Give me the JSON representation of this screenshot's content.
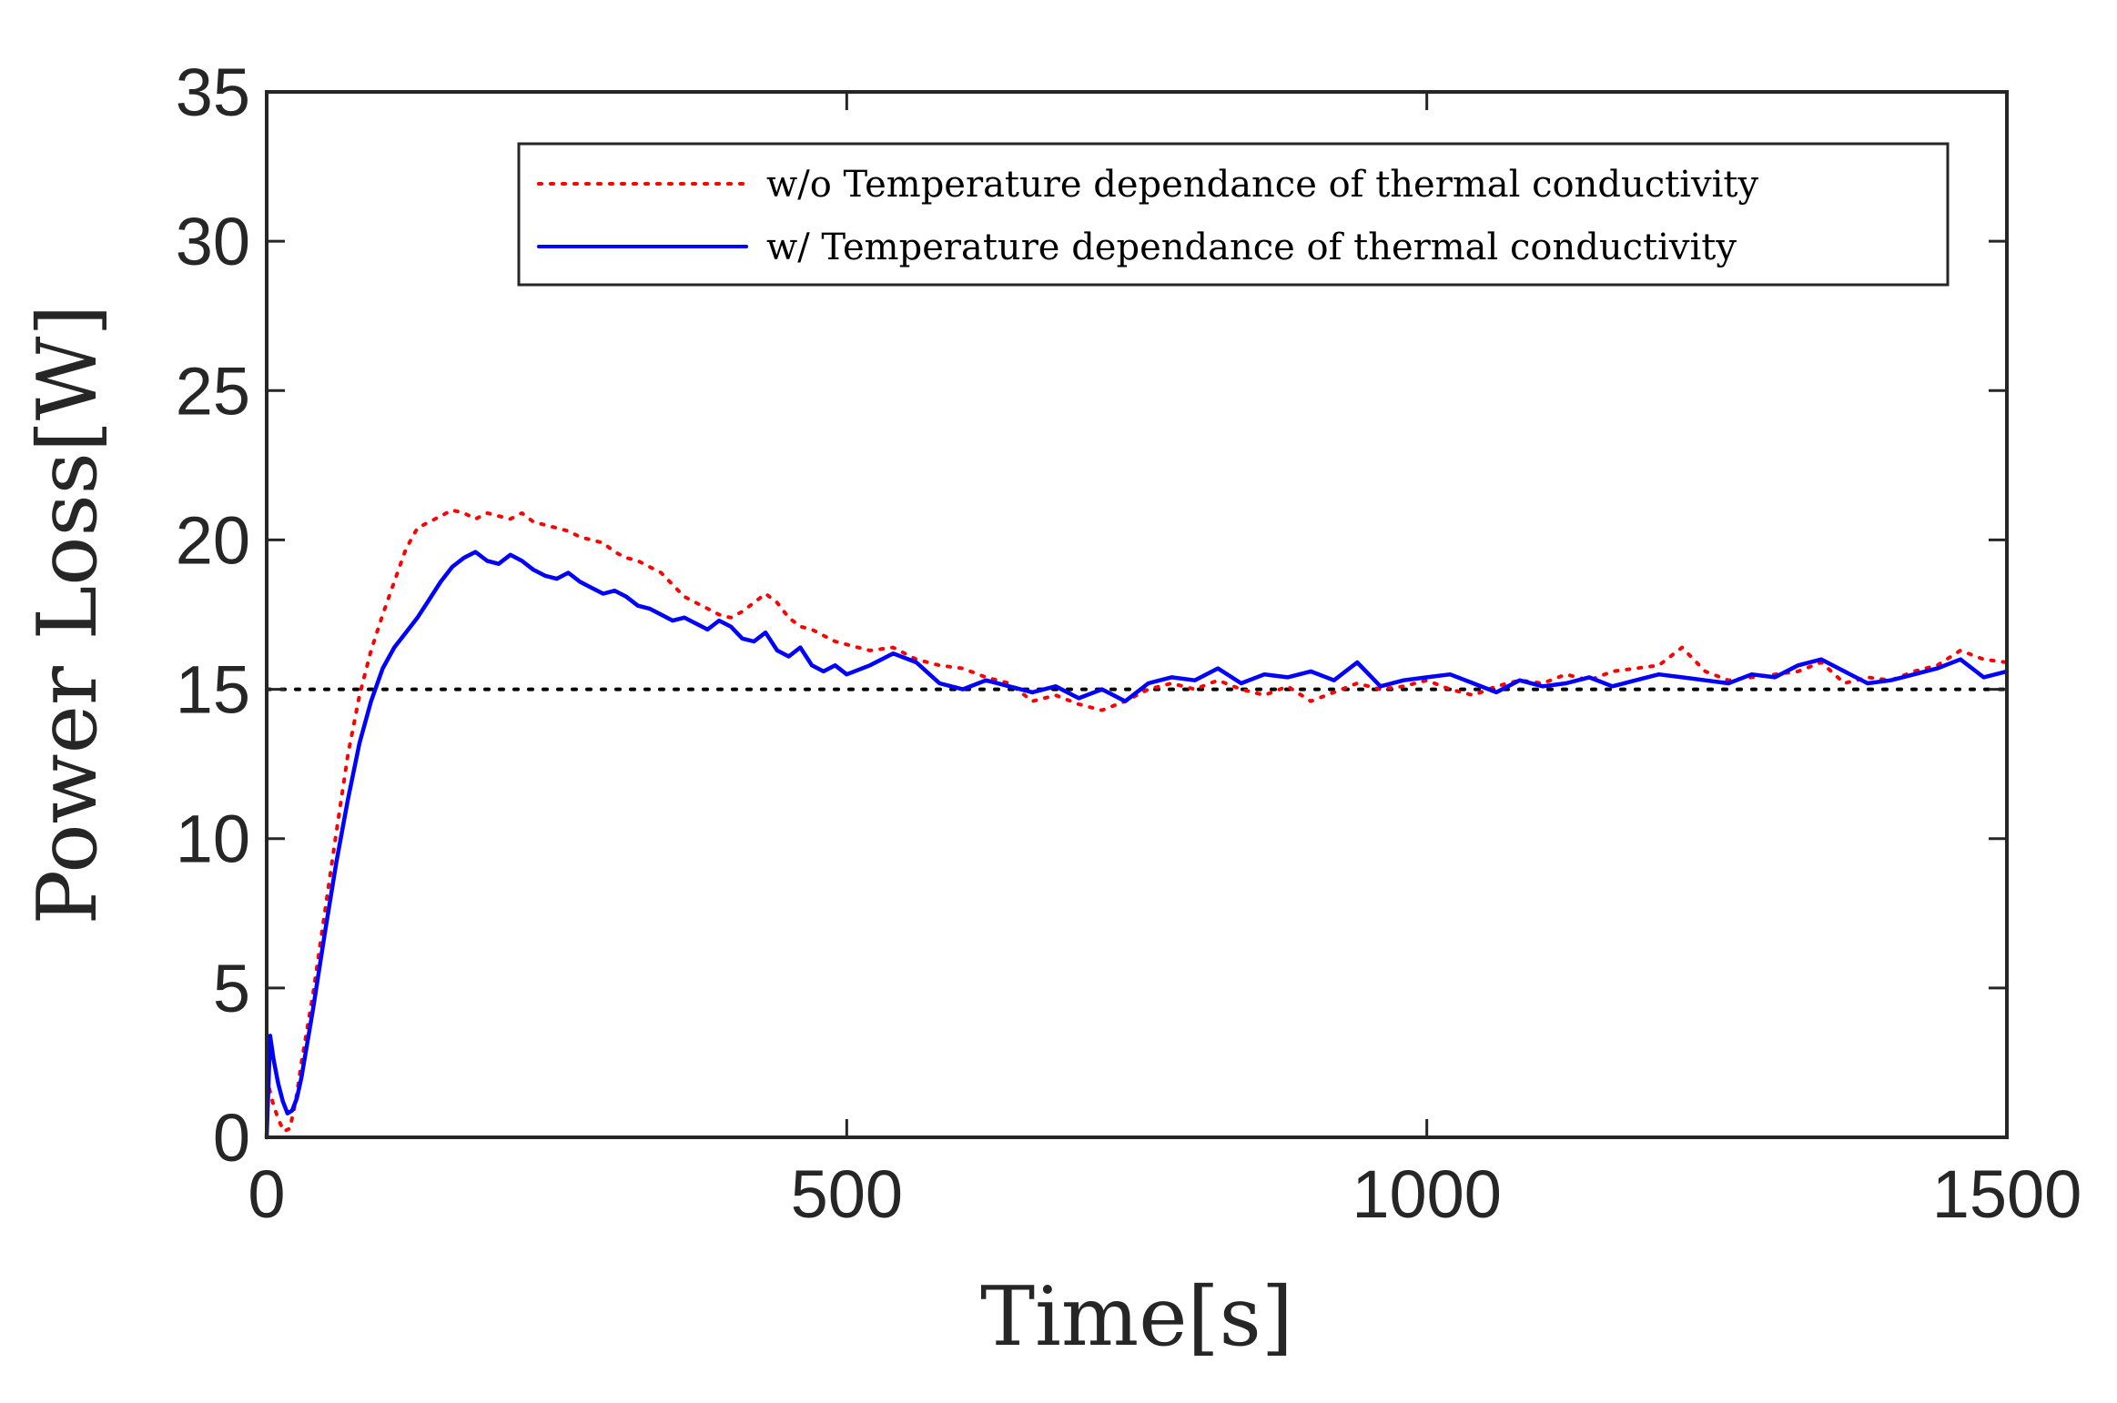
{
  "chart_data": {
    "type": "line",
    "title": "",
    "xlabel": "Time[s]",
    "ylabel": "Power Loss[W]",
    "xlim": [
      0,
      1500
    ],
    "ylim": [
      0,
      35
    ],
    "xticks": [
      0,
      500,
      1000,
      1500
    ],
    "yticks": [
      0,
      5,
      10,
      15,
      20,
      25,
      30,
      35
    ],
    "xtick_labels": [
      "0",
      "500",
      "1000",
      "1500"
    ],
    "ytick_labels": [
      "0",
      "5",
      "10",
      "15",
      "20",
      "25",
      "30",
      "35"
    ],
    "grid": false,
    "legend_position": "top-right",
    "reference_line": {
      "y": 15,
      "style": "dotted",
      "color": "#000000"
    },
    "series": [
      {
        "name": "w/o Temperature dependance of thermal conductivity",
        "color": "#ff0000",
        "style": "dotted",
        "x": [
          0,
          5,
          10,
          15,
          20,
          25,
          30,
          40,
          50,
          60,
          70,
          80,
          90,
          100,
          110,
          120,
          130,
          140,
          150,
          160,
          170,
          180,
          190,
          200,
          210,
          220,
          230,
          240,
          250,
          260,
          270,
          280,
          290,
          300,
          310,
          320,
          330,
          340,
          350,
          360,
          370,
          380,
          390,
          400,
          410,
          420,
          430,
          440,
          450,
          460,
          470,
          480,
          490,
          500,
          520,
          540,
          560,
          580,
          600,
          620,
          640,
          660,
          680,
          700,
          720,
          740,
          760,
          780,
          800,
          820,
          840,
          860,
          880,
          900,
          920,
          940,
          960,
          980,
          1000,
          1020,
          1040,
          1060,
          1080,
          1100,
          1120,
          1140,
          1160,
          1180,
          1200,
          1220,
          1240,
          1260,
          1280,
          1300,
          1320,
          1340,
          1360,
          1380,
          1400,
          1420,
          1440,
          1460,
          1480,
          1500
        ],
        "values": [
          2.0,
          1.2,
          0.6,
          0.2,
          0.3,
          1.2,
          2.5,
          4.8,
          7.5,
          10.2,
          12.8,
          14.8,
          16.3,
          17.5,
          18.6,
          19.7,
          20.4,
          20.6,
          20.8,
          21.0,
          20.9,
          20.7,
          20.9,
          20.8,
          20.7,
          20.9,
          20.6,
          20.5,
          20.4,
          20.3,
          20.1,
          20.0,
          19.9,
          19.6,
          19.4,
          19.3,
          19.1,
          18.9,
          18.5,
          18.1,
          17.9,
          17.7,
          17.5,
          17.4,
          17.6,
          17.9,
          18.2,
          17.9,
          17.4,
          17.1,
          17.0,
          16.8,
          16.6,
          16.5,
          16.3,
          16.4,
          16.0,
          15.8,
          15.7,
          15.4,
          15.2,
          14.6,
          14.8,
          14.5,
          14.3,
          14.6,
          15.0,
          15.2,
          15.0,
          15.3,
          15.0,
          14.8,
          15.1,
          14.6,
          14.9,
          15.2,
          15.0,
          15.1,
          15.3,
          15.0,
          14.8,
          15.1,
          15.3,
          15.2,
          15.5,
          15.3,
          15.6,
          15.7,
          15.8,
          16.4,
          15.6,
          15.3,
          15.4,
          15.5,
          15.6,
          15.9,
          15.2,
          15.4,
          15.3,
          15.6,
          15.8,
          16.3,
          16.0,
          15.9
        ]
      },
      {
        "name": "w/ Temperature dependance of thermal conductivity",
        "color": "#0000ff",
        "style": "solid",
        "x": [
          0,
          3,
          6,
          10,
          14,
          18,
          22,
          26,
          30,
          40,
          50,
          60,
          70,
          80,
          90,
          100,
          110,
          120,
          130,
          140,
          150,
          160,
          170,
          180,
          190,
          200,
          210,
          220,
          230,
          240,
          250,
          260,
          270,
          280,
          290,
          300,
          310,
          320,
          330,
          340,
          350,
          360,
          370,
          380,
          390,
          400,
          410,
          420,
          430,
          440,
          450,
          460,
          470,
          480,
          490,
          500,
          520,
          540,
          560,
          580,
          600,
          620,
          640,
          660,
          680,
          700,
          720,
          740,
          760,
          780,
          800,
          820,
          840,
          860,
          880,
          900,
          920,
          940,
          960,
          980,
          1000,
          1020,
          1040,
          1060,
          1080,
          1100,
          1120,
          1140,
          1160,
          1180,
          1200,
          1220,
          1240,
          1260,
          1280,
          1300,
          1320,
          1340,
          1360,
          1380,
          1400,
          1420,
          1440,
          1460,
          1480,
          1500
        ],
        "values": [
          0.0,
          3.4,
          2.6,
          1.8,
          1.2,
          0.8,
          0.9,
          1.3,
          2.0,
          4.3,
          6.8,
          9.2,
          11.3,
          13.2,
          14.6,
          15.7,
          16.4,
          16.9,
          17.4,
          18.0,
          18.6,
          19.1,
          19.4,
          19.6,
          19.3,
          19.2,
          19.5,
          19.3,
          19.0,
          18.8,
          18.7,
          18.9,
          18.6,
          18.4,
          18.2,
          18.3,
          18.1,
          17.8,
          17.7,
          17.5,
          17.3,
          17.4,
          17.2,
          17.0,
          17.3,
          17.1,
          16.7,
          16.6,
          16.9,
          16.3,
          16.1,
          16.4,
          15.8,
          15.6,
          15.8,
          15.5,
          15.8,
          16.2,
          15.9,
          15.2,
          15.0,
          15.3,
          15.1,
          14.9,
          15.1,
          14.7,
          15.0,
          14.6,
          15.2,
          15.4,
          15.3,
          15.7,
          15.2,
          15.5,
          15.4,
          15.6,
          15.3,
          15.9,
          15.1,
          15.3,
          15.4,
          15.5,
          15.2,
          14.9,
          15.3,
          15.1,
          15.2,
          15.4,
          15.1,
          15.3,
          15.5,
          15.4,
          15.3,
          15.2,
          15.5,
          15.4,
          15.8,
          16.0,
          15.6,
          15.2,
          15.3,
          15.5,
          15.7,
          16.0,
          15.4,
          15.6
        ]
      }
    ]
  }
}
